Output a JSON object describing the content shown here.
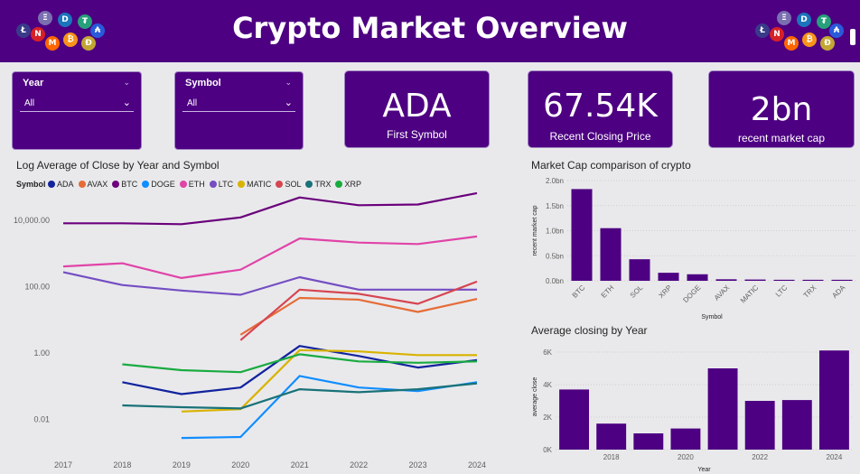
{
  "header": {
    "title": "Crypto Market Overview"
  },
  "filters": {
    "year": {
      "label": "Year",
      "value": "All"
    },
    "symbol": {
      "label": "Symbol",
      "value": "All"
    }
  },
  "cards": [
    {
      "value": "ADA",
      "label": "First Symbol"
    },
    {
      "value": "67.54K",
      "label": "Recent Closing Price"
    },
    {
      "value": "2bn",
      "label": "recent market cap"
    }
  ],
  "colors": {
    "header": "#4d0082",
    "bar": "#4d0082",
    "background": "#e9e9ec"
  },
  "icons": [
    "litecoin-icon",
    "ethereum-icon",
    "dash-icon",
    "tether-icon",
    "neo-icon",
    "monero-icon",
    "bitcoin-icon",
    "dogecoin-icon",
    "cardano-icon"
  ],
  "line_chart": {
    "title": "Log Average of Close by Year and Symbol",
    "legend_title": "Symbol"
  },
  "cap_chart": {
    "title": "Market Cap comparison of crypto"
  },
  "close_chart": {
    "title": "Average closing by Year"
  },
  "chart_data": [
    {
      "type": "line",
      "title": "Log Average of Close by Year and Symbol",
      "legend_title": "Symbol",
      "log_scale": true,
      "x": [
        "2017",
        "2018",
        "2019",
        "2020",
        "2021",
        "2022",
        "2023",
        "2024"
      ],
      "y_ticks": [
        "0.01",
        "1.00",
        "100.00",
        "10,000.00"
      ],
      "y_tick_values": [
        0.01,
        1,
        100,
        10000
      ],
      "ylim": [
        0.001,
        100000
      ],
      "series": [
        {
          "name": "ADA",
          "color": "#12239e",
          "values": [
            null,
            0.13,
            0.057,
            0.09,
            1.6,
            0.8,
            0.36,
            0.6
          ]
        },
        {
          "name": "AVAX",
          "color": "#e66c37",
          "values": [
            null,
            null,
            null,
            3.5,
            45,
            40,
            17,
            42
          ]
        },
        {
          "name": "BTC",
          "color": "#6b007b",
          "values": [
            8000,
            8000,
            7500,
            12000,
            48000,
            28000,
            29500,
            65000
          ]
        },
        {
          "name": "DOGE",
          "color": "#118dff",
          "values": [
            null,
            null,
            0.0027,
            0.0029,
            0.2,
            0.09,
            0.07,
            0.13
          ]
        },
        {
          "name": "ETH",
          "color": "#e044a7",
          "values": [
            400,
            500,
            180,
            320,
            2800,
            2100,
            1900,
            3200
          ]
        },
        {
          "name": "LTC",
          "color": "#744ec2",
          "values": [
            270,
            110,
            75,
            56,
            190,
            80,
            80,
            80
          ]
        },
        {
          "name": "MATIC",
          "color": "#d9b300",
          "values": [
            null,
            null,
            0.017,
            0.02,
            1.2,
            1.1,
            0.85,
            0.85
          ]
        },
        {
          "name": "SOL",
          "color": "#d64550",
          "values": [
            null,
            null,
            null,
            2.4,
            80,
            60,
            30,
            140
          ]
        },
        {
          "name": "TRX",
          "color": "#197278",
          "values": [
            null,
            0.026,
            0.023,
            0.021,
            0.08,
            0.065,
            0.08,
            0.12
          ]
        },
        {
          "name": "XRP",
          "color": "#1aab40",
          "values": [
            null,
            0.45,
            0.3,
            0.26,
            0.9,
            0.55,
            0.5,
            0.55
          ]
        }
      ],
      "legend_position": "top-left",
      "grid": false
    },
    {
      "type": "bar",
      "title": "Market Cap comparison of crypto",
      "xlabel": "Symbol",
      "ylabel": "recent market cap",
      "categories": [
        "BTC",
        "ETH",
        "SOL",
        "XRP",
        "DOGE",
        "AVAX",
        "MATIC",
        "LTC",
        "TRX",
        "ADA"
      ],
      "values": [
        1.83,
        1.05,
        0.43,
        0.16,
        0.13,
        0.03,
        0.025,
        0.02,
        0.02,
        0.02
      ],
      "y_ticks": [
        "0.0bn",
        "0.5bn",
        "1.0bn",
        "1.5bn",
        "2.0bn"
      ],
      "ylim": [
        0,
        2.0
      ],
      "unit": "bn",
      "grid": true
    },
    {
      "type": "bar",
      "title": "Average closing by Year",
      "xlabel": "Year",
      "ylabel": "average close",
      "categories": [
        "2017",
        "2018",
        "2019",
        "2020",
        "2021",
        "2022",
        "2023",
        "2024"
      ],
      "x_tick_labels": [
        "",
        "2018",
        "",
        "2020",
        "",
        "2022",
        "",
        "2024"
      ],
      "values": [
        3700,
        1600,
        1000,
        1300,
        5000,
        3000,
        3050,
        6100
      ],
      "y_ticks": [
        "0K",
        "2K",
        "4K",
        "6K"
      ],
      "ylim": [
        0,
        6500
      ],
      "grid": true
    }
  ]
}
